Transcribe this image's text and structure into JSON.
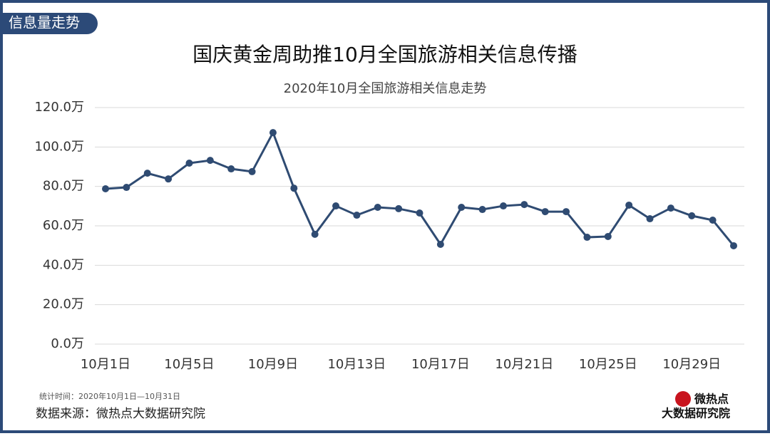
{
  "chart_data": {
    "type": "line",
    "badge": "信息量走势",
    "title": "国庆黄金周助推10月全国旅游相关信息传播",
    "subtitle": "2020年10月全国旅游相关信息走势",
    "note": "统计时间：2020年10月1日—10月31日",
    "source": "数据来源：微热点大数据研究院",
    "logo": [
      "微热点",
      "大数据研究院"
    ],
    "categories": [
      "10月1日",
      null,
      null,
      null,
      "10月5日",
      null,
      null,
      null,
      "10月9日",
      null,
      null,
      null,
      "10月13日",
      null,
      null,
      null,
      "10月17日",
      null,
      null,
      null,
      "10月21日",
      null,
      null,
      null,
      "10月25日",
      null,
      null,
      null,
      "10月29日",
      null,
      null
    ],
    "series": [
      {
        "name": "信息量",
        "color": "#2f4b72",
        "values": [
          78.8,
          79.5,
          86.7,
          83.8,
          91.8,
          93.2,
          88.9,
          87.5,
          107.3,
          79.1,
          55.7,
          70.1,
          65.4,
          69.4,
          68.7,
          66.5,
          50.6,
          69.4,
          68.3,
          70.1,
          70.8,
          67.2,
          67.2,
          54.2,
          54.6,
          70.5,
          63.6,
          69.0,
          65.1,
          62.9,
          49.9
        ]
      }
    ],
    "ylim": [
      0,
      120
    ],
    "yticks": [
      {
        "value": 0,
        "label": "0.0万"
      },
      {
        "value": 20,
        "label": "20.0万"
      },
      {
        "value": 40,
        "label": "40.0万"
      },
      {
        "value": 60,
        "label": "60.0万"
      },
      {
        "value": 80,
        "label": "80.0万"
      },
      {
        "value": 100,
        "label": "100.0万"
      },
      {
        "value": 120,
        "label": "120.0万"
      }
    ],
    "grid": true
  }
}
